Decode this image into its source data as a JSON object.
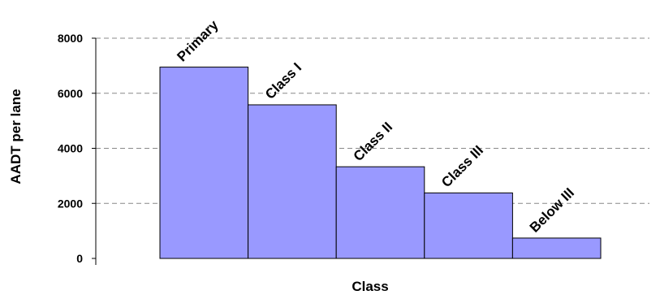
{
  "chart_data": {
    "type": "bar",
    "categories": [
      "Primary",
      "Class I",
      "Class II",
      "Class III",
      "Below III"
    ],
    "values": [
      6950,
      5580,
      3330,
      2380,
      740
    ],
    "xlabel": "Class",
    "ylabel": "AADT per lane",
    "ylim": [
      0,
      8000
    ],
    "yticks": [
      "0",
      "2000",
      "4000",
      "6000",
      "8000"
    ],
    "grid": true,
    "bar_color": "#9999ff"
  }
}
